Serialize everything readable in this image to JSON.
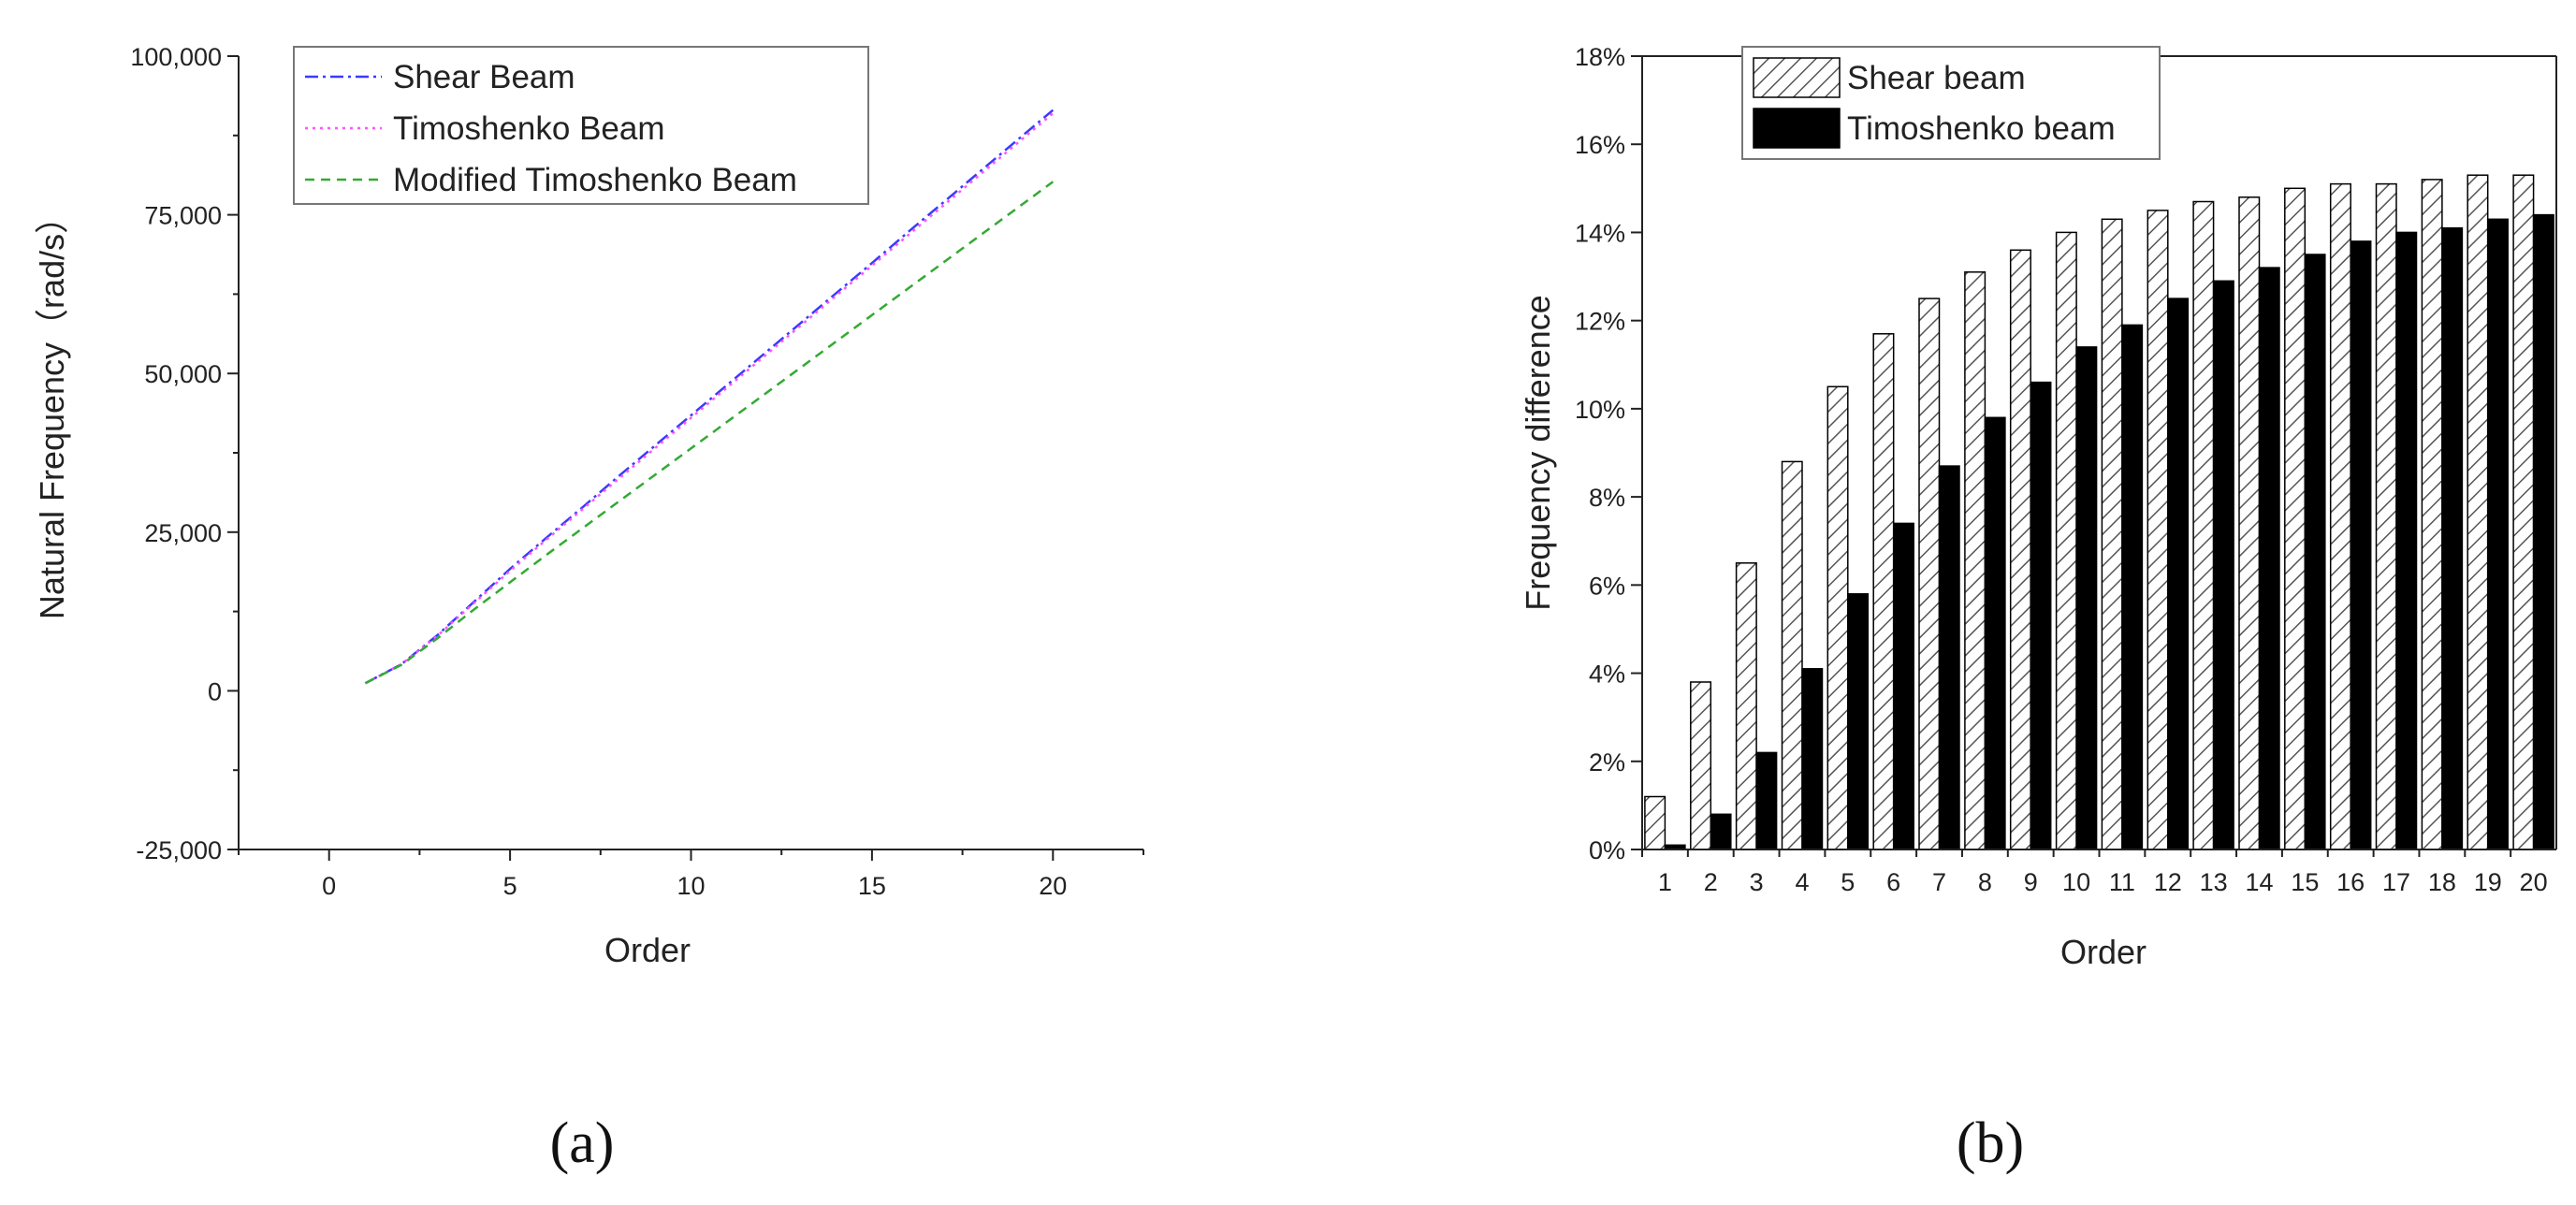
{
  "captions": {
    "a": "(a)",
    "b": "(b)"
  },
  "chart_data": [
    {
      "type": "line",
      "xlabel": "Order",
      "ylabel": "Natural Frequency（rad/s）",
      "xlim": [
        -2.5,
        22.5
      ],
      "ylim": [
        -25000,
        100000
      ],
      "xticks": [
        0,
        5,
        10,
        15,
        20
      ],
      "xtick_labels": [
        "0",
        "5",
        "10",
        "15",
        "20"
      ],
      "yticks": [
        -25000,
        0,
        25000,
        50000,
        75000,
        100000
      ],
      "ytick_labels": [
        "-25,000",
        "0",
        "25,000",
        "50,000",
        "75,000",
        "100,000"
      ],
      "legend_position": "top-left",
      "x": [
        1,
        2,
        3,
        4,
        5,
        6,
        7,
        8,
        9,
        10,
        11,
        12,
        13,
        14,
        15,
        16,
        17,
        18,
        19,
        20
      ],
      "series": [
        {
          "name": "Shear Beam",
          "color": "#3a3aff",
          "dash": "dash-dot",
          "values": [
            1200,
            4200,
            8800,
            14000,
            19200,
            24100,
            28900,
            33800,
            38600,
            43400,
            48200,
            53000,
            57800,
            62600,
            67400,
            72300,
            77100,
            81900,
            86700,
            91500
          ]
        },
        {
          "name": "Timoshenko Beam",
          "color": "#ff55ff",
          "dash": "dot",
          "values": [
            1200,
            4200,
            8700,
            13800,
            18900,
            23800,
            28600,
            33400,
            38200,
            43000,
            47800,
            52600,
            57400,
            62200,
            67000,
            71800,
            76600,
            81400,
            86200,
            91000
          ]
        },
        {
          "name": "Modified Timoshenko Beam",
          "color": "#33aa33",
          "dash": "dash",
          "values": [
            1200,
            4100,
            8300,
            12800,
            17100,
            21400,
            25600,
            29800,
            34000,
            38200,
            42400,
            46600,
            50800,
            55000,
            59200,
            63400,
            67600,
            71800,
            76000,
            80200
          ]
        }
      ]
    },
    {
      "type": "bar",
      "xlabel": "Order",
      "ylabel": "Frequency difference",
      "ylim": [
        0,
        18
      ],
      "yticks": [
        0,
        2,
        4,
        6,
        8,
        10,
        12,
        14,
        16,
        18
      ],
      "ytick_labels": [
        "0%",
        "2%",
        "4%",
        "6%",
        "8%",
        "10%",
        "12%",
        "14%",
        "16%",
        "18%"
      ],
      "categories": [
        "1",
        "2",
        "3",
        "4",
        "5",
        "6",
        "7",
        "8",
        "9",
        "10",
        "11",
        "12",
        "13",
        "14",
        "15",
        "16",
        "17",
        "18",
        "19",
        "20"
      ],
      "legend_position": "top-left",
      "series": [
        {
          "name": "Shear beam",
          "fill": "hatch",
          "values": [
            1.2,
            3.8,
            6.5,
            8.8,
            10.5,
            11.7,
            12.5,
            13.1,
            13.6,
            14.0,
            14.3,
            14.5,
            14.7,
            14.8,
            15.0,
            15.1,
            15.1,
            15.2,
            15.3,
            15.3
          ]
        },
        {
          "name": "Timoshenko beam",
          "fill": "#000000",
          "values": [
            0.1,
            0.8,
            2.2,
            4.1,
            5.8,
            7.4,
            8.7,
            9.8,
            10.6,
            11.4,
            11.9,
            12.5,
            12.9,
            13.2,
            13.5,
            13.8,
            14.0,
            14.1,
            14.3,
            14.4
          ]
        }
      ]
    }
  ]
}
